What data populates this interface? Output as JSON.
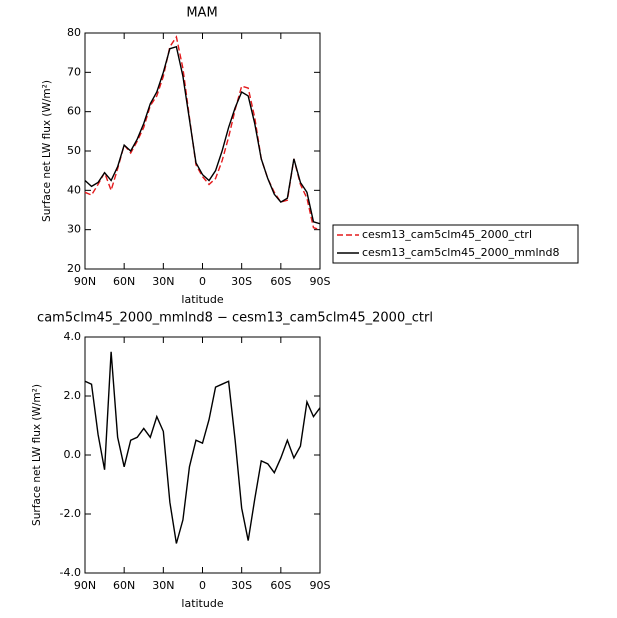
{
  "chart_data": [
    {
      "type": "line",
      "title": "MAM",
      "x_label": "latitude",
      "y_label": "Surface net LW flux (W/m²)",
      "x": [
        90,
        85,
        80,
        75,
        70,
        65,
        60,
        55,
        50,
        45,
        40,
        35,
        30,
        25,
        20,
        15,
        10,
        5,
        0,
        -5,
        -10,
        -15,
        -20,
        -25,
        -30,
        -35,
        -40,
        -45,
        -50,
        -55,
        -60,
        -65,
        -70,
        -75,
        -80,
        -85,
        -90
      ],
      "xlim": [
        90,
        -90
      ],
      "xticks": [
        {
          "value": 90,
          "label": "90N"
        },
        {
          "value": 60,
          "label": "60N"
        },
        {
          "value": 30,
          "label": "30N"
        },
        0,
        {
          "value": -30,
          "label": "30S"
        },
        {
          "value": -60,
          "label": "60S"
        },
        {
          "value": -90,
          "label": "90S"
        }
      ],
      "ylim": [
        20,
        80
      ],
      "yticks": [
        20,
        30,
        40,
        50,
        60,
        70,
        80
      ],
      "legend": "right",
      "series": [
        {
          "name": "cesm13_cam5clm45_2000_ctrl",
          "color": "#e41a1c",
          "line_style": "dashed",
          "values": [
            39.5,
            38.8,
            41.5,
            44.5,
            40,
            45.5,
            51.5,
            49.5,
            52.5,
            56,
            61.5,
            64,
            69,
            76.5,
            79,
            71,
            58.5,
            46.5,
            43.5,
            41.5,
            43,
            47.5,
            53.5,
            60.5,
            66.5,
            66,
            58.5,
            48,
            43,
            39.5,
            37,
            37.5,
            48,
            41.5,
            38,
            30.5,
            30
          ]
        },
        {
          "name": "cesm13_cam5clm45_2000_mmlnd8",
          "color": "#000000",
          "line_style": "solid",
          "values": [
            42.5,
            41,
            42,
            44.5,
            42.5,
            46,
            51.5,
            50,
            53,
            57,
            62,
            65,
            70,
            76,
            76.5,
            69,
            58,
            47,
            44,
            42.5,
            45,
            50,
            56,
            61,
            65,
            64,
            57,
            48,
            43,
            39,
            37,
            38,
            48,
            42,
            39.5,
            32,
            31.5
          ]
        }
      ]
    },
    {
      "type": "line",
      "title": "cam5clm45_2000_mmlnd8 − cesm13_cam5clm45_2000_ctrl",
      "x_label": "latitude",
      "y_label": "Surface net LW flux (W/m²)",
      "x": [
        90,
        85,
        80,
        75,
        70,
        65,
        60,
        55,
        50,
        45,
        40,
        35,
        30,
        25,
        20,
        15,
        10,
        5,
        0,
        -5,
        -10,
        -15,
        -20,
        -25,
        -30,
        -35,
        -40,
        -45,
        -50,
        -55,
        -60,
        -65,
        -70,
        -75,
        -80,
        -85,
        -90
      ],
      "xlim": [
        90,
        -90
      ],
      "xticks": [
        {
          "value": 90,
          "label": "90N"
        },
        {
          "value": 60,
          "label": "60N"
        },
        {
          "value": 30,
          "label": "30N"
        },
        0,
        {
          "value": -30,
          "label": "30S"
        },
        {
          "value": -60,
          "label": "60S"
        },
        {
          "value": -90,
          "label": "90S"
        }
      ],
      "ylim": [
        -4,
        4
      ],
      "yticks": [
        {
          "value": -4,
          "label": "-4.0"
        },
        {
          "value": -2,
          "label": "-2.0"
        },
        {
          "value": 0,
          "label": "0.0"
        },
        {
          "value": 2,
          "label": "2.0"
        },
        {
          "value": 4,
          "label": "4.0"
        }
      ],
      "series": [
        {
          "color": "#000000",
          "line_style": "solid",
          "values": [
            2.5,
            2.4,
            0.7,
            -0.5,
            3.5,
            0.6,
            -0.4,
            0.5,
            0.6,
            0.9,
            0.6,
            1.3,
            0.8,
            -1.6,
            -3.0,
            -2.2,
            -0.4,
            0.5,
            0.4,
            1.2,
            2.3,
            2.4,
            2.5,
            0.5,
            -1.8,
            -2.9,
            -1.5,
            -0.2,
            -0.3,
            -0.6,
            -0.1,
            0.5,
            -0.1,
            0.3,
            1.8,
            1.3,
            1.6
          ]
        }
      ]
    }
  ]
}
